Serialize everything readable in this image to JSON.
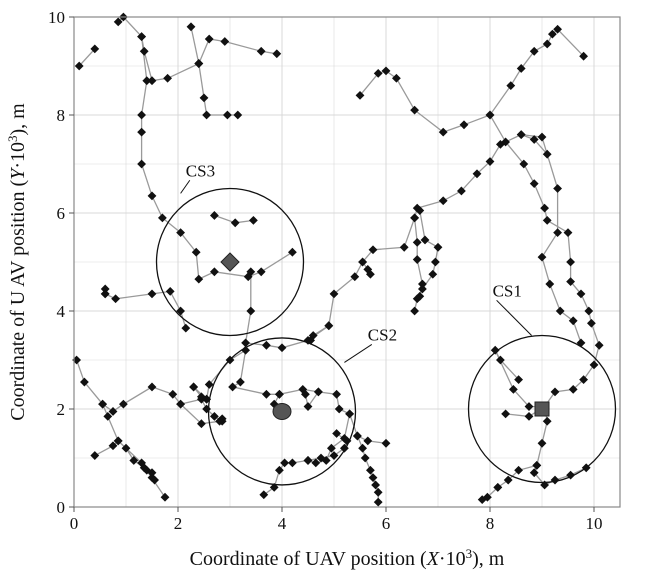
{
  "chart_data": {
    "type": "scatter",
    "title": "",
    "xlabel_parts": [
      "Coordinate of UAV position (",
      "X",
      "·10",
      "3",
      "), m"
    ],
    "ylabel_parts": [
      "Coordinate of U AV  position (",
      "Y",
      "·10",
      "3",
      "), m"
    ],
    "xlim": [
      0,
      10.5
    ],
    "ylim": [
      0,
      10
    ],
    "x_ticks": [
      0,
      2,
      4,
      6,
      8,
      10
    ],
    "y_ticks": [
      0,
      2,
      4,
      6,
      8,
      10
    ],
    "grid": true,
    "line_color": "#9a9a9a",
    "marker_color": "#111111",
    "paths": [
      [
        [
          0.85,
          9.9
        ],
        [
          0.95,
          10.0
        ],
        [
          1.3,
          9.6
        ],
        [
          1.35,
          9.3
        ],
        [
          1.5,
          8.7
        ],
        [
          1.8,
          8.75
        ],
        [
          2.4,
          9.05
        ],
        [
          2.25,
          9.8
        ]
      ],
      [
        [
          0.1,
          9.0
        ],
        [
          0.4,
          9.35
        ]
      ],
      [
        [
          2.4,
          9.05
        ],
        [
          2.6,
          9.55
        ],
        [
          2.9,
          9.5
        ],
        [
          3.6,
          9.3
        ],
        [
          3.9,
          9.25
        ]
      ],
      [
        [
          2.4,
          9.05
        ],
        [
          2.5,
          8.35
        ],
        [
          2.55,
          8.0
        ],
        [
          2.95,
          8.0
        ],
        [
          3.15,
          8.0
        ]
      ],
      [
        [
          1.3,
          9.6
        ],
        [
          1.4,
          8.7
        ],
        [
          1.3,
          8.0
        ],
        [
          1.3,
          7.65
        ],
        [
          1.3,
          7.0
        ],
        [
          1.5,
          6.35
        ],
        [
          1.7,
          5.9
        ],
        [
          2.05,
          5.6
        ],
        [
          2.35,
          5.2
        ],
        [
          2.4,
          4.65
        ],
        [
          2.7,
          4.8
        ],
        [
          3.35,
          4.7
        ],
        [
          3.6,
          4.8
        ],
        [
          4.2,
          5.2
        ]
      ],
      [
        [
          2.7,
          5.95
        ],
        [
          3.1,
          5.8
        ],
        [
          3.45,
          5.85
        ]
      ],
      [
        [
          0.6,
          4.35
        ],
        [
          0.8,
          4.25
        ],
        [
          1.5,
          4.35
        ],
        [
          1.85,
          4.4
        ],
        [
          2.05,
          4.0
        ],
        [
          2.15,
          3.65
        ]
      ],
      [
        [
          0.6,
          4.45
        ],
        [
          0.6,
          4.35
        ]
      ],
      [
        [
          3.4,
          4.8
        ],
        [
          3.4,
          4.0
        ],
        [
          3.3,
          3.35
        ],
        [
          3.7,
          3.3
        ],
        [
          4.0,
          3.25
        ],
        [
          4.5,
          3.4
        ],
        [
          4.9,
          3.7
        ],
        [
          5.0,
          4.35
        ],
        [
          5.4,
          4.7
        ],
        [
          5.55,
          5.0
        ],
        [
          5.75,
          5.25
        ],
        [
          6.35,
          5.3
        ],
        [
          6.55,
          5.9
        ],
        [
          6.6,
          6.1
        ],
        [
          7.1,
          6.25
        ],
        [
          7.45,
          6.45
        ],
        [
          7.75,
          6.8
        ],
        [
          8.0,
          7.05
        ],
        [
          8.2,
          7.4
        ],
        [
          8.6,
          7.6
        ],
        [
          8.85,
          7.5
        ],
        [
          9.1,
          7.2
        ]
      ],
      [
        [
          5.5,
          8.4
        ],
        [
          5.85,
          8.85
        ],
        [
          6.0,
          8.9
        ],
        [
          6.2,
          8.75
        ],
        [
          6.55,
          8.1
        ],
        [
          7.1,
          7.65
        ],
        [
          7.5,
          7.8
        ],
        [
          8.0,
          8.0
        ],
        [
          8.4,
          8.6
        ],
        [
          8.6,
          8.95
        ],
        [
          8.85,
          9.3
        ],
        [
          9.1,
          9.45
        ],
        [
          9.2,
          9.65
        ],
        [
          9.3,
          9.75
        ],
        [
          9.8,
          9.2
        ]
      ],
      [
        [
          8.0,
          8.0
        ],
        [
          8.3,
          7.45
        ],
        [
          8.65,
          7.0
        ],
        [
          8.85,
          6.6
        ],
        [
          9.05,
          6.1
        ],
        [
          9.1,
          5.85
        ],
        [
          9.5,
          5.6
        ],
        [
          9.55,
          5.0
        ],
        [
          9.55,
          4.6
        ],
        [
          9.75,
          4.35
        ],
        [
          9.9,
          4.0
        ],
        [
          9.95,
          3.75
        ],
        [
          10.1,
          3.3
        ],
        [
          10.0,
          2.9
        ],
        [
          9.8,
          2.6
        ],
        [
          9.6,
          2.4
        ],
        [
          9.25,
          2.35
        ],
        [
          9.05,
          2.05
        ]
      ],
      [
        [
          8.6,
          7.6
        ],
        [
          9.0,
          7.55
        ],
        [
          9.3,
          6.5
        ],
        [
          9.3,
          5.6
        ],
        [
          9.0,
          5.1
        ],
        [
          9.15,
          4.55
        ],
        [
          9.35,
          4.0
        ],
        [
          9.6,
          3.8
        ],
        [
          9.75,
          3.35
        ]
      ],
      [
        [
          9.05,
          2.05
        ],
        [
          8.75,
          2.05
        ],
        [
          8.45,
          2.4
        ],
        [
          8.1,
          3.2
        ],
        [
          8.2,
          3.0
        ],
        [
          8.55,
          2.6
        ]
      ],
      [
        [
          9.05,
          2.05
        ],
        [
          8.75,
          1.85
        ],
        [
          8.3,
          1.9
        ]
      ],
      [
        [
          9.05,
          2.05
        ],
        [
          9.1,
          1.75
        ],
        [
          9.0,
          1.3
        ],
        [
          8.9,
          0.85
        ],
        [
          8.85,
          0.7
        ],
        [
          9.05,
          0.45
        ],
        [
          9.25,
          0.55
        ],
        [
          9.55,
          0.65
        ],
        [
          9.85,
          0.8
        ]
      ],
      [
        [
          8.9,
          0.85
        ],
        [
          8.55,
          0.75
        ],
        [
          8.35,
          0.55
        ],
        [
          8.15,
          0.4
        ]
      ],
      [
        [
          7.85,
          0.15
        ],
        [
          7.95,
          0.2
        ],
        [
          8.15,
          0.4
        ]
      ],
      [
        [
          6.65,
          6.05
        ],
        [
          6.75,
          5.45
        ],
        [
          7.0,
          5.3
        ],
        [
          6.95,
          5.0
        ],
        [
          6.9,
          4.75
        ],
        [
          6.7,
          4.45
        ],
        [
          6.6,
          4.25
        ],
        [
          6.55,
          4.0
        ]
      ],
      [
        [
          6.55,
          5.9
        ],
        [
          6.6,
          5.4
        ],
        [
          6.6,
          5.05
        ],
        [
          6.7,
          4.55
        ],
        [
          6.65,
          4.3
        ]
      ],
      [
        [
          5.55,
          5.0
        ],
        [
          5.65,
          4.85
        ],
        [
          5.7,
          4.75
        ]
      ],
      [
        [
          4.9,
          3.7
        ],
        [
          4.6,
          3.5
        ],
        [
          4.55,
          3.4
        ]
      ],
      [
        [
          0.05,
          3.0
        ],
        [
          0.2,
          2.55
        ],
        [
          0.55,
          2.1
        ],
        [
          0.75,
          1.95
        ],
        [
          0.95,
          2.1
        ],
        [
          1.5,
          2.45
        ],
        [
          1.9,
          2.3
        ],
        [
          2.05,
          2.1
        ],
        [
          2.45,
          2.2
        ],
        [
          2.55,
          2.0
        ],
        [
          2.7,
          1.85
        ],
        [
          2.85,
          1.75
        ],
        [
          2.85,
          1.8
        ]
      ],
      [
        [
          0.55,
          2.1
        ],
        [
          0.65,
          1.85
        ],
        [
          0.85,
          1.35
        ],
        [
          1.0,
          1.2
        ],
        [
          1.15,
          0.95
        ],
        [
          1.35,
          0.8
        ],
        [
          1.4,
          0.75
        ],
        [
          1.5,
          0.6
        ],
        [
          1.55,
          0.55
        ],
        [
          1.5,
          0.7
        ]
      ],
      [
        [
          0.4,
          1.05
        ],
        [
          0.75,
          1.25
        ],
        [
          0.85,
          1.35
        ],
        [
          1.3,
          0.9
        ],
        [
          1.75,
          0.2
        ]
      ],
      [
        [
          2.05,
          2.1
        ],
        [
          2.45,
          1.7
        ],
        [
          2.8,
          1.75
        ]
      ],
      [
        [
          2.3,
          2.45
        ],
        [
          2.55,
          2.2
        ],
        [
          2.6,
          2.5
        ],
        [
          3.0,
          3.0
        ],
        [
          3.3,
          3.2
        ],
        [
          3.2,
          2.55
        ],
        [
          3.05,
          2.45
        ],
        [
          3.7,
          2.3
        ],
        [
          3.95,
          2.3
        ],
        [
          4.4,
          2.4
        ],
        [
          4.7,
          2.35
        ],
        [
          5.05,
          2.3
        ],
        [
          5.1,
          2.0
        ],
        [
          5.3,
          1.9
        ],
        [
          5.2,
          1.4
        ],
        [
          4.95,
          1.2
        ],
        [
          4.85,
          0.95
        ],
        [
          4.65,
          0.9
        ],
        [
          4.5,
          0.95
        ],
        [
          4.2,
          0.9
        ],
        [
          4.05,
          0.9
        ],
        [
          3.95,
          0.75
        ],
        [
          3.85,
          0.4
        ],
        [
          3.65,
          0.25
        ]
      ],
      [
        [
          2.3,
          2.45
        ],
        [
          2.45,
          2.25
        ],
        [
          2.55,
          2.2
        ]
      ],
      [
        [
          5.3,
          1.9
        ],
        [
          5.45,
          1.45
        ],
        [
          5.55,
          1.2
        ],
        [
          5.6,
          1.0
        ],
        [
          5.7,
          0.75
        ],
        [
          5.75,
          0.6
        ],
        [
          5.8,
          0.45
        ],
        [
          5.85,
          0.3
        ],
        [
          5.85,
          0.1
        ]
      ],
      [
        [
          5.45,
          1.45
        ],
        [
          5.65,
          1.35
        ],
        [
          6.0,
          1.3
        ]
      ],
      [
        [
          4.5,
          0.95
        ],
        [
          4.75,
          1.0
        ],
        [
          5.0,
          1.05
        ],
        [
          5.2,
          1.2
        ],
        [
          5.25,
          1.35
        ],
        [
          5.05,
          1.5
        ]
      ],
      [
        [
          3.95,
          2.3
        ],
        [
          3.85,
          2.1
        ],
        [
          4.0,
          1.95
        ]
      ],
      [
        [
          4.7,
          2.35
        ],
        [
          4.5,
          2.05
        ],
        [
          4.45,
          2.3
        ]
      ]
    ],
    "circles": [
      {
        "label": "CS1",
        "cx": 9.0,
        "cy": 2.0,
        "r": 1.5,
        "marker": "square",
        "label_x": 8.05,
        "label_y": 4.3,
        "leader_to": [
          8.8,
          3.5
        ]
      },
      {
        "label": "CS2",
        "cx": 4.0,
        "cy": 1.95,
        "r": 1.5,
        "marker": "circle",
        "label_x": 5.65,
        "label_y": 3.4,
        "leader_to": [
          5.2,
          2.95
        ]
      },
      {
        "label": "CS3",
        "cx": 3.0,
        "cy": 5.0,
        "r": 1.5,
        "marker": "diamond",
        "label_x": 2.15,
        "label_y": 6.75,
        "leader_to": [
          2.05,
          6.4
        ]
      }
    ]
  }
}
